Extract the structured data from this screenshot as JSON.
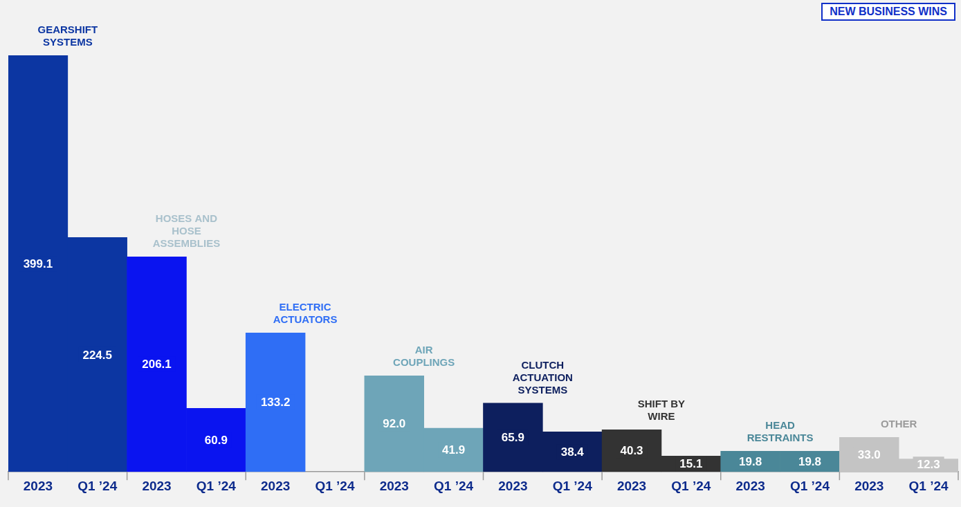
{
  "chart_data": {
    "type": "bar",
    "title": "NEW BUSINESS WINS",
    "categories": [
      "GEARSHIFT SYSTEMS",
      "HOSES AND HOSE ASSEMBLIES",
      "ELECTRIC ACTUATORS",
      "AIR COUPLINGS",
      "CLUTCH ACTUATION SYSTEMS",
      "SHIFT BY WIRE",
      "HEAD RESTRAINTS",
      "OTHER"
    ],
    "series": [
      {
        "name": "2023",
        "values": [
          399.1,
          206.1,
          133.2,
          92.0,
          65.9,
          40.3,
          19.8,
          33.0
        ],
        "value_labels": [
          "399.1",
          "206.1",
          "133.2",
          "92.0",
          "65.9",
          "40.3",
          "19.8",
          "33.0"
        ],
        "colors": [
          "#0c36a2",
          "#0a14f0",
          "#2f6ef5",
          "#6ea5b8",
          "#0d1f5e",
          "#333333",
          "#4a8798",
          "#c4c4c4"
        ]
      },
      {
        "name": "Q1 ’24",
        "values": [
          224.5,
          60.9,
          null,
          41.9,
          38.4,
          15.1,
          19.8,
          12.3
        ],
        "value_labels": [
          "224.5",
          "60.9",
          null,
          "41.9",
          "38.4",
          "15.1",
          "19.8",
          "12.3"
        ],
        "colors": [
          "#0c36a2",
          "#0a14f0",
          "#2f6ef5",
          "#6ea5b8",
          "#0d1f5e",
          "#333333",
          "#4a8798",
          "#c4c4c4"
        ]
      }
    ],
    "data_labels": true,
    "tick_labels": "x",
    "grid": false
  }
}
